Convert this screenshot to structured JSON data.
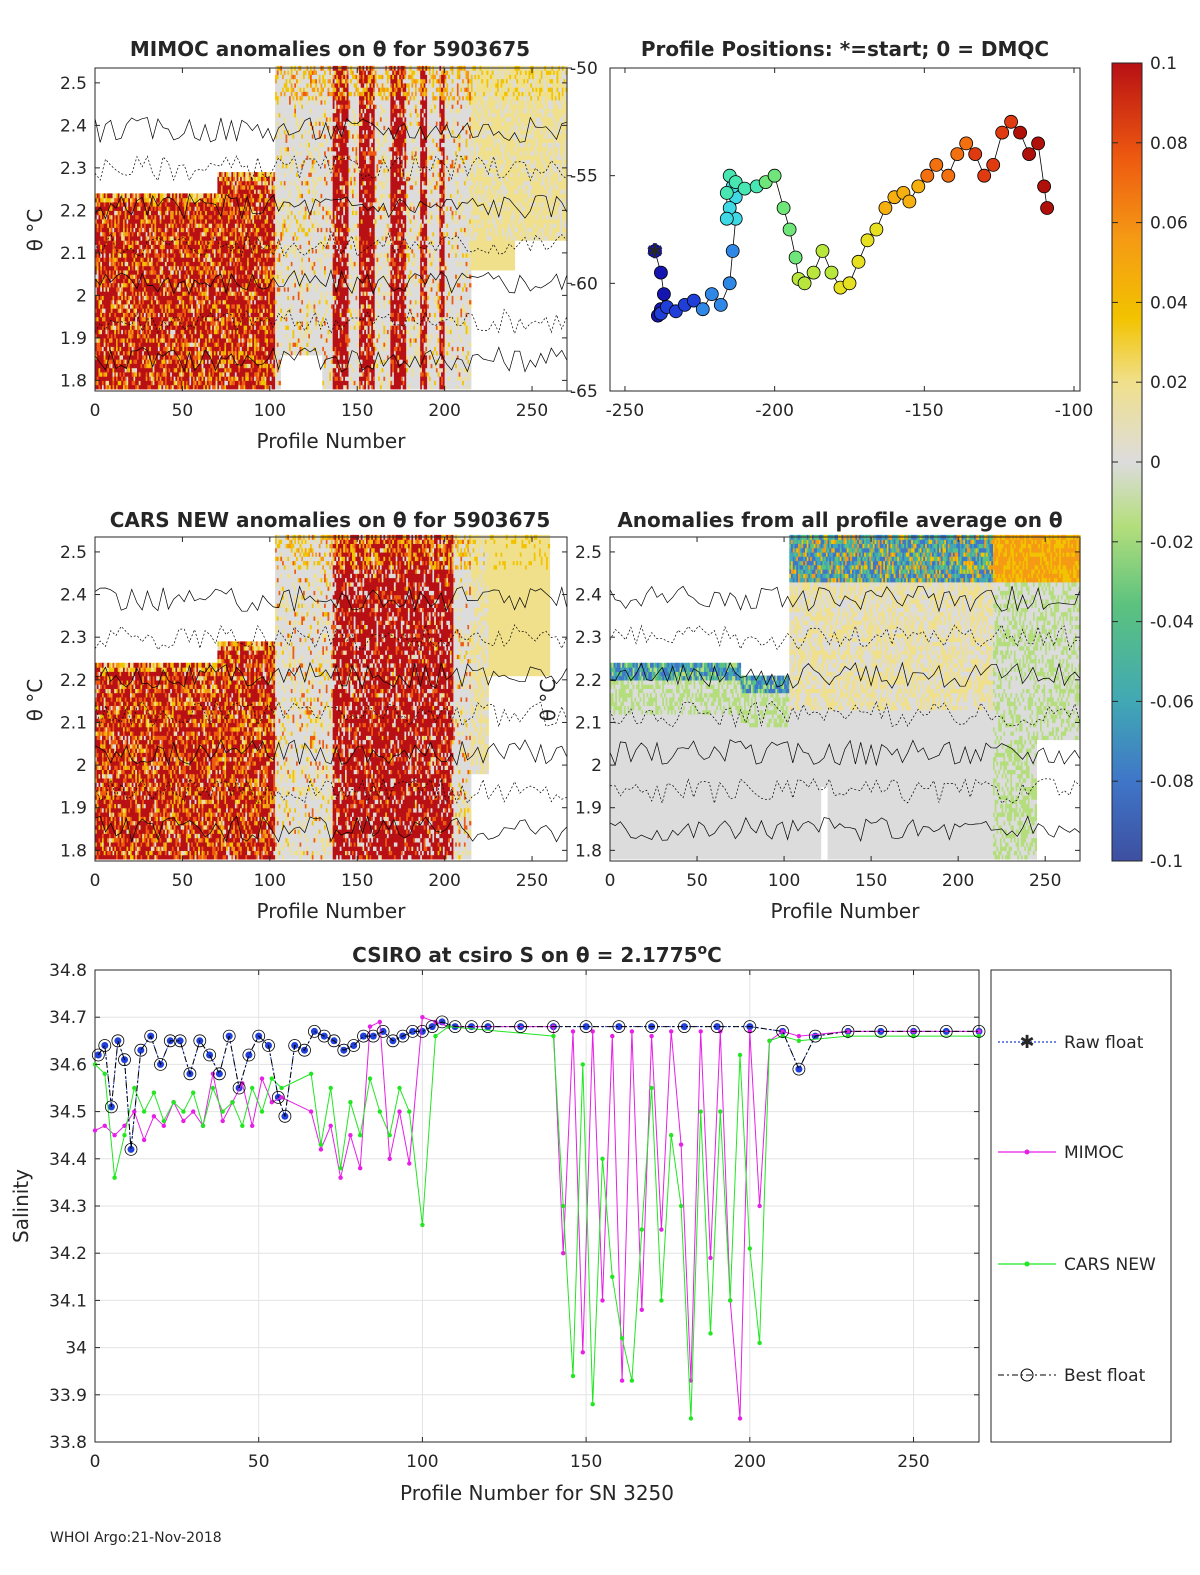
{
  "footer": "WHOI Argo:21-Nov-2018",
  "panels": {
    "p1": {
      "title": "MIMOC anomalies on θ  for 5903675",
      "xlabel": "Profile Number",
      "ylabel": "θ °C",
      "xticks": [
        "0",
        "50",
        "100",
        "150",
        "200",
        "250"
      ],
      "yticks": [
        "1.8",
        "1.9",
        "2",
        "2.1",
        "2.2",
        "2.3",
        "2.4",
        "2.5"
      ]
    },
    "p2": {
      "title": "Profile Positions: *=start; 0 = DMQC",
      "xticks": [
        "-250",
        "-200",
        "-150",
        "-100"
      ],
      "yticks": [
        "-50",
        "-55",
        "-60",
        "-65"
      ]
    },
    "p3": {
      "title": "CARS NEW anomalies on θ for 5903675",
      "xlabel": "Profile Number",
      "ylabel": "θ °C",
      "xticks": [
        "0",
        "50",
        "100",
        "150",
        "200",
        "250"
      ],
      "yticks": [
        "1.8",
        "1.9",
        "2",
        "2.1",
        "2.2",
        "2.3",
        "2.4",
        "2.5"
      ]
    },
    "p4": {
      "title": "Anomalies from all profile average on θ",
      "xlabel": "Profile Number",
      "ylabel": "θ °C",
      "xticks": [
        "0",
        "50",
        "100",
        "150",
        "200",
        "250"
      ],
      "yticks": [
        "1.8",
        "1.9",
        "2",
        "2.1",
        "2.2",
        "2.3",
        "2.4",
        "2.5"
      ]
    }
  },
  "colorbar": {
    "ticks": [
      "0.1",
      "0.08",
      "0.06",
      "0.04",
      "0.02",
      "0",
      "-0.02",
      "-0.04",
      "-0.06",
      "-0.08",
      "-0.1"
    ],
    "colors": [
      "#3e4fa0",
      "#3f76c8",
      "#41a8b4",
      "#5bc27e",
      "#b4de7c",
      "#dcdcdc",
      "#f0e08c",
      "#f2c300",
      "#f59a14",
      "#ee5a10",
      "#b81014"
    ]
  },
  "chart_data": {
    "type": "line",
    "title": "CSIRO at csiro S on θ = 2.1775",
    "title_suffix": "o",
    "title_unit": "C",
    "xlabel": "Profile Number for SN 3250",
    "ylabel": "Salinity",
    "xlim": [
      0,
      270
    ],
    "ylim": [
      33.8,
      34.8
    ],
    "xticks": [
      "0",
      "50",
      "100",
      "150",
      "200",
      "250"
    ],
    "yticks": [
      "33.8",
      "33.9",
      "34",
      "34.1",
      "34.2",
      "34.3",
      "34.4",
      "34.5",
      "34.6",
      "34.7",
      "34.8"
    ],
    "legend": [
      "Raw float",
      "MIMOC",
      "CARS NEW",
      "Best float"
    ],
    "legend_position": "outside-right",
    "series": [
      {
        "name": "Raw float",
        "color": "#1f3fd8",
        "x": [
          1,
          3,
          5,
          7,
          9,
          11,
          14,
          17,
          20,
          23,
          26,
          29,
          32,
          35,
          38,
          41,
          44,
          47,
          50,
          53,
          56,
          58,
          61,
          64,
          67,
          70,
          73,
          76,
          79,
          82,
          85,
          88,
          91,
          94,
          97,
          100,
          103,
          106,
          110,
          115,
          120,
          130,
          140,
          150,
          160,
          170,
          180,
          190,
          200,
          210,
          215,
          220,
          230,
          240,
          250,
          260,
          270
        ],
        "y": [
          34.62,
          34.64,
          34.51,
          34.65,
          34.61,
          34.42,
          34.63,
          34.66,
          34.6,
          34.65,
          34.65,
          34.58,
          34.65,
          34.62,
          34.58,
          34.66,
          34.55,
          34.62,
          34.66,
          34.64,
          34.53,
          34.49,
          34.64,
          34.63,
          34.67,
          34.66,
          34.65,
          34.63,
          34.64,
          34.66,
          34.66,
          34.67,
          34.65,
          34.66,
          34.67,
          34.67,
          34.68,
          34.69,
          34.68,
          34.68,
          34.68,
          34.68,
          34.68,
          34.68,
          34.68,
          34.68,
          34.68,
          34.68,
          34.68,
          34.67,
          34.59,
          34.66,
          34.67,
          34.67,
          34.67,
          34.67,
          34.67
        ]
      },
      {
        "name": "MIMOC",
        "color": "#e61fe6",
        "x": [
          0,
          3,
          6,
          9,
          12,
          15,
          18,
          21,
          24,
          27,
          30,
          33,
          36,
          39,
          42,
          45,
          48,
          51,
          54,
          57,
          66,
          69,
          72,
          75,
          78,
          81,
          84,
          87,
          90,
          93,
          96,
          100,
          104,
          108,
          140,
          143,
          146,
          149,
          152,
          155,
          158,
          161,
          164,
          167,
          170,
          173,
          176,
          179,
          182,
          185,
          188,
          191,
          194,
          197,
          200,
          203,
          206,
          210,
          215,
          230,
          250,
          270
        ],
        "y": [
          34.46,
          34.47,
          34.45,
          34.47,
          34.5,
          34.44,
          34.49,
          34.47,
          34.52,
          34.48,
          34.5,
          34.47,
          34.58,
          34.48,
          34.52,
          34.56,
          34.47,
          34.57,
          34.52,
          34.53,
          34.5,
          34.42,
          34.47,
          34.36,
          34.45,
          34.38,
          34.68,
          34.69,
          34.4,
          34.5,
          34.39,
          34.7,
          34.69,
          34.68,
          34.68,
          34.2,
          34.67,
          33.99,
          34.67,
          34.1,
          34.66,
          33.93,
          34.67,
          34.08,
          34.66,
          34.25,
          34.67,
          34.43,
          33.93,
          34.67,
          34.19,
          34.67,
          34.1,
          33.85,
          34.67,
          34.3,
          34.65,
          34.67,
          34.66,
          34.67,
          34.67,
          34.67
        ]
      },
      {
        "name": "CARS NEW",
        "color": "#22e622",
        "x": [
          0,
          3,
          6,
          9,
          12,
          15,
          18,
          21,
          24,
          27,
          30,
          33,
          36,
          39,
          42,
          45,
          48,
          51,
          54,
          57,
          66,
          69,
          72,
          75,
          78,
          81,
          84,
          87,
          90,
          93,
          96,
          100,
          104,
          108,
          140,
          143,
          146,
          149,
          152,
          155,
          158,
          161,
          164,
          167,
          170,
          173,
          176,
          179,
          182,
          185,
          188,
          191,
          194,
          197,
          200,
          203,
          206,
          210,
          215,
          230,
          250,
          270
        ],
        "y": [
          34.6,
          34.58,
          34.36,
          34.45,
          34.55,
          34.5,
          34.54,
          34.48,
          34.52,
          34.5,
          34.54,
          34.47,
          34.55,
          34.5,
          34.52,
          34.47,
          34.55,
          34.5,
          34.57,
          34.55,
          34.58,
          34.43,
          34.55,
          34.38,
          34.52,
          34.45,
          34.57,
          34.5,
          34.45,
          34.55,
          34.5,
          34.26,
          34.66,
          34.68,
          34.66,
          34.3,
          33.94,
          34.6,
          33.88,
          34.4,
          34.15,
          34.02,
          33.93,
          34.25,
          34.55,
          34.1,
          34.45,
          34.3,
          33.85,
          34.5,
          34.03,
          34.5,
          34.1,
          34.62,
          34.21,
          34.01,
          34.65,
          34.66,
          34.65,
          34.66,
          34.66,
          34.66
        ]
      },
      {
        "name": "Best float",
        "color": "#000000",
        "x": [
          1,
          3,
          5,
          7,
          9,
          11,
          14,
          17,
          20,
          23,
          26,
          29,
          32,
          35,
          38,
          41,
          44,
          47,
          50,
          53,
          56,
          58,
          61,
          64,
          67,
          70,
          73,
          76,
          79,
          82,
          85,
          88,
          91,
          94,
          97,
          100,
          103,
          106,
          110,
          115,
          120,
          130,
          140,
          150,
          160,
          170,
          180,
          190,
          200,
          210,
          215,
          220,
          230,
          240,
          250,
          260,
          270
        ],
        "y": [
          34.62,
          34.64,
          34.51,
          34.65,
          34.61,
          34.42,
          34.63,
          34.66,
          34.6,
          34.65,
          34.65,
          34.58,
          34.65,
          34.62,
          34.58,
          34.66,
          34.55,
          34.62,
          34.66,
          34.64,
          34.53,
          34.49,
          34.64,
          34.63,
          34.67,
          34.66,
          34.65,
          34.63,
          34.64,
          34.66,
          34.66,
          34.67,
          34.65,
          34.66,
          34.67,
          34.67,
          34.68,
          34.69,
          34.68,
          34.68,
          34.68,
          34.68,
          34.68,
          34.68,
          34.68,
          34.68,
          34.68,
          34.68,
          34.68,
          34.67,
          34.59,
          34.66,
          34.67,
          34.67,
          34.67,
          34.67,
          34.67
        ]
      }
    ]
  },
  "positions_data": {
    "type": "scatter",
    "xlim": [
      -250,
      -100
    ],
    "ylim": [
      -65,
      -50
    ],
    "start": [
      -240,
      -58.5
    ],
    "lon": [
      -240,
      -238,
      -237,
      -238,
      -239,
      -238,
      -236,
      -233,
      -230,
      -227,
      -224,
      -221,
      -218,
      -215,
      -214,
      -213,
      -213,
      -214,
      -215,
      -216,
      -216,
      -215,
      -213,
      -210,
      -206,
      -203,
      -200,
      -197,
      -195,
      -193,
      -192,
      -190,
      -187,
      -184,
      -181,
      -178,
      -175,
      -172,
      -169,
      -166,
      -163,
      -160,
      -157,
      -155,
      -152,
      -149,
      -146,
      -142,
      -139,
      -136,
      -133,
      -130,
      -127,
      -124,
      -121,
      -118,
      -115,
      -112,
      -110,
      -109
    ],
    "lat": [
      -58.5,
      -59.5,
      -60.5,
      -61.2,
      -61.5,
      -61.4,
      -61.1,
      -61.3,
      -61.0,
      -60.8,
      -61.2,
      -60.5,
      -61.0,
      -60.0,
      -58.5,
      -57.0,
      -56.0,
      -55.5,
      -56.5,
      -57.0,
      -55.8,
      -55.0,
      -55.3,
      -55.6,
      -55.5,
      -55.3,
      -55.0,
      -56.5,
      -57.5,
      -58.8,
      -59.8,
      -60.0,
      -59.5,
      -58.5,
      -59.5,
      -60.2,
      -60.0,
      -59.0,
      -58.0,
      -57.5,
      -56.5,
      -56.0,
      -55.8,
      -56.2,
      -55.5,
      -55.0,
      -54.5,
      -55.0,
      -54.0,
      -53.5,
      -54.0,
      -55.0,
      -54.5,
      -53.0,
      -52.5,
      -53.0,
      -54.0,
      -53.5,
      -55.5,
      -56.5
    ]
  }
}
